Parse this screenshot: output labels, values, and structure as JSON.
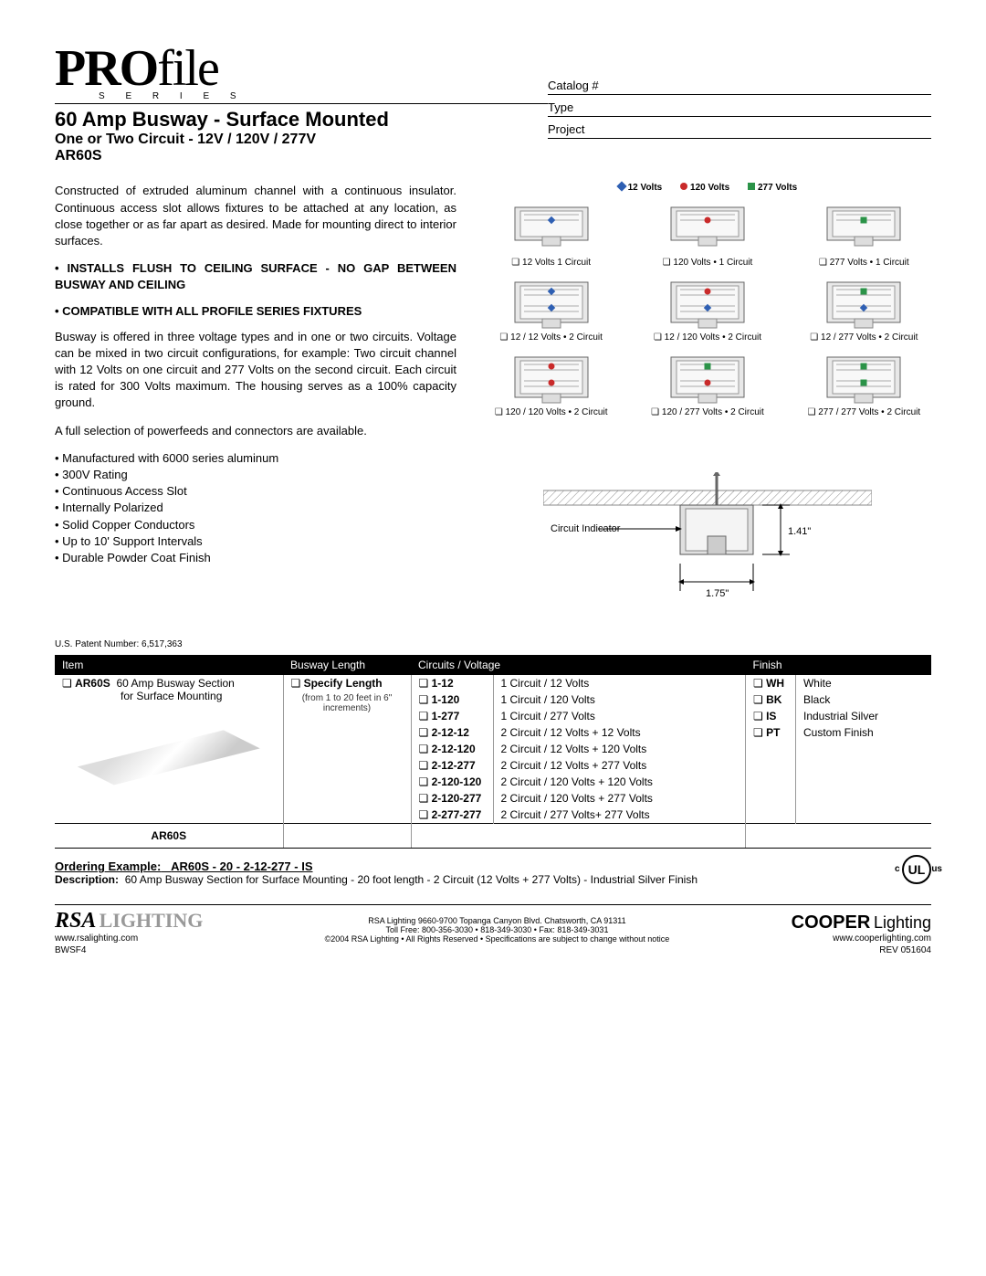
{
  "logo": {
    "part1": "PRO",
    "part2": "file",
    "series": "S E R I E S"
  },
  "title": {
    "main": "60 Amp Busway - Surface Mounted",
    "sub1": "One or Two Circuit - 12V / 120V / 277V",
    "sub2": "AR60S"
  },
  "catalog_fields": [
    "Catalog #",
    "Type",
    "Project"
  ],
  "body": {
    "p1": "Constructed of extruded aluminum channel with a continuous insulator. Continuous access slot allows fixtures to be attached at any location, as close together or as far apart as desired. Made for mounting direct to interior surfaces.",
    "b1": "• INSTALLS FLUSH TO CEILING SURFACE - NO GAP BETWEEN BUSWAY AND CEILING",
    "b2": "• COMPATIBLE WITH ALL PROFILE SERIES FIXTURES",
    "p2": "Busway is offered in three voltage types and in one or two circuits. Voltage can be mixed in two circuit configurations, for example: Two circuit channel with 12 Volts on one circuit and 277 Volts on the second circuit. Each circuit is rated for 300 Volts maximum. The housing serves as a 100% capacity ground.",
    "p3": "A full selection of powerfeeds and connectors are available.",
    "features": [
      "Manufactured with 6000 series aluminum",
      "300V Rating",
      "Continuous Access Slot",
      "Internally Polarized",
      "Solid Copper Conductors",
      "Up to 10' Support Intervals",
      "Durable Powder Coat Finish"
    ]
  },
  "legend": [
    {
      "label": "12 Volts",
      "color": "#2e5fb3",
      "shape": "diamond"
    },
    {
      "label": "120 Volts",
      "color": "#c92a2a",
      "shape": "circle"
    },
    {
      "label": "277 Volts",
      "color": "#2b9348",
      "shape": "square"
    }
  ],
  "configs": [
    {
      "label": "12 Volts  1 Circuit",
      "dots": [
        [
          "#2e5fb3",
          "diamond"
        ]
      ]
    },
    {
      "label": "120 Volts • 1 Circuit",
      "dots": [
        [
          "#c92a2a",
          "circle"
        ]
      ]
    },
    {
      "label": "277 Volts • 1 Circuit",
      "dots": [
        [
          "#2b9348",
          "square"
        ]
      ]
    },
    {
      "label": "12 / 12 Volts • 2 Circuit",
      "dots": [
        [
          "#2e5fb3",
          "diamond"
        ],
        [
          "#2e5fb3",
          "diamond"
        ]
      ]
    },
    {
      "label": "12 / 120 Volts • 2 Circuit",
      "dots": [
        [
          "#c92a2a",
          "circle"
        ],
        [
          "#2e5fb3",
          "diamond"
        ]
      ]
    },
    {
      "label": "12 / 277 Volts • 2 Circuit",
      "dots": [
        [
          "#2b9348",
          "square"
        ],
        [
          "#2e5fb3",
          "diamond"
        ]
      ]
    },
    {
      "label": "120 / 120 Volts • 2 Circuit",
      "dots": [
        [
          "#c92a2a",
          "circle"
        ],
        [
          "#c92a2a",
          "circle"
        ]
      ]
    },
    {
      "label": "120 / 277 Volts • 2 Circuit",
      "dots": [
        [
          "#2b9348",
          "square"
        ],
        [
          "#c92a2a",
          "circle"
        ]
      ]
    },
    {
      "label": "277 / 277 Volts • 2 Circuit",
      "dots": [
        [
          "#2b9348",
          "square"
        ],
        [
          "#2b9348",
          "square"
        ]
      ]
    }
  ],
  "mount": {
    "circuit_indicator": "Circuit Indicator",
    "h": "1.41\"",
    "w": "1.75\""
  },
  "patent": "U.S. Patent Number: 6,517,363",
  "table": {
    "headers": [
      "Item",
      "Busway Length",
      "Circuits / Voltage",
      "Finish"
    ],
    "item": {
      "code": "AR60S",
      "desc1": "60 Amp Busway Section",
      "desc2": "for Surface Mounting"
    },
    "length": {
      "label": "Specify Length",
      "note": "(from 1 to 20 feet in 6\" increments)"
    },
    "circuits": [
      {
        "code": "1-12",
        "desc": "1 Circuit / 12 Volts"
      },
      {
        "code": "1-120",
        "desc": "1 Circuit / 120 Volts"
      },
      {
        "code": "1-277",
        "desc": "1 Circuit /  277 Volts"
      },
      {
        "code": "2-12-12",
        "desc": "2 Circuit / 12 Volts + 12 Volts"
      },
      {
        "code": "2-12-120",
        "desc": "2 Circuit / 12 Volts + 120 Volts"
      },
      {
        "code": "2-12-277",
        "desc": "2 Circuit / 12 Volts + 277 Volts"
      },
      {
        "code": "2-120-120",
        "desc": "2 Circuit / 120 Volts + 120 Volts"
      },
      {
        "code": "2-120-277",
        "desc": "2 Circuit / 120 Volts + 277 Volts"
      },
      {
        "code": "2-277-277",
        "desc": "2 Circuit / 277 Volts+ 277 Volts"
      }
    ],
    "finishes": [
      {
        "code": "WH",
        "desc": "White"
      },
      {
        "code": "BK",
        "desc": "Black"
      },
      {
        "code": "IS",
        "desc": "Industrial Silver"
      },
      {
        "code": "PT",
        "desc": "Custom Finish"
      }
    ],
    "bottom_label": "AR60S"
  },
  "ordering": {
    "label": "Ordering Example:",
    "example": "AR60S - 20 - 2-12-277 - IS",
    "desc_label": "Description:",
    "desc": "60 Amp Busway Section for Surface Mounting - 20 foot length - 2 Circuit (12 Volts + 277 Volts) - Industrial Silver Finish"
  },
  "footer": {
    "rsa": "RSA",
    "lighting": "LIGHTING",
    "rsa_url": "www.rsalighting.com",
    "addr1": "RSA Lighting  9660-9700 Topanga Canyon Blvd.  Chatsworth, CA  91311",
    "addr2": "Toll Free: 800-356-3030 • 818-349-3030 • Fax: 818-349-3031",
    "addr3": "©2004 RSA Lighting • All Rights Reserved • Specifications are subject to change without notice",
    "cooper": "COOPER",
    "cooper_light": "Lighting",
    "cooper_url": "www.cooperlighting.com",
    "code_left": "BWSF4",
    "code_right": "REV 051604",
    "ul": "UL"
  }
}
